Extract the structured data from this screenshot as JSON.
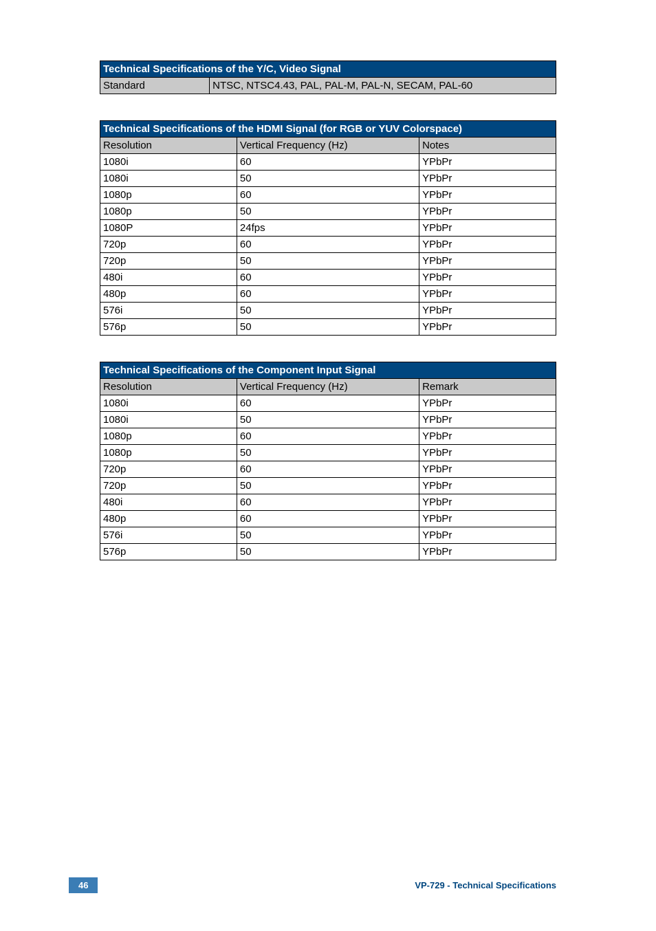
{
  "table1": {
    "title": "Technical Specifications of the Y/C, Video Signal",
    "title_bg": "#00467f",
    "title_color": "#ffffff",
    "header_bg": "#c9c9c9",
    "col_widths": [
      "24%",
      "76%"
    ],
    "rows": [
      [
        "Standard",
        "NTSC, NTSC4.43, PAL, PAL-M, PAL-N, SECAM, PAL-60"
      ]
    ]
  },
  "table2": {
    "title": "Technical Specifications of the HDMI Signal (for RGB or YUV Colorspace)",
    "title_bg": "#00467f",
    "title_color": "#ffffff",
    "header_bg": "#c9c9c9",
    "col_widths": [
      "30%",
      "40%",
      "30%"
    ],
    "headers": [
      "Resolution",
      "Vertical Frequency (Hz)",
      "Notes"
    ],
    "rows": [
      [
        "1080i",
        "60",
        "YPbPr"
      ],
      [
        "1080i",
        "50",
        "YPbPr"
      ],
      [
        "1080p",
        "60",
        "YPbPr"
      ],
      [
        "1080p",
        "50",
        "YPbPr"
      ],
      [
        "1080P",
        "24fps",
        "YPbPr"
      ],
      [
        "720p",
        "60",
        "YPbPr"
      ],
      [
        "720p",
        "50",
        "YPbPr"
      ],
      [
        "480i",
        "60",
        "YPbPr"
      ],
      [
        "480p",
        "60",
        "YPbPr"
      ],
      [
        "576i",
        "50",
        "YPbPr"
      ],
      [
        "576p",
        "50",
        "YPbPr"
      ]
    ]
  },
  "table3": {
    "title": "Technical Specifications of the Component Input Signal",
    "title_bg": "#00467f",
    "title_color": "#ffffff",
    "header_bg": "#c9c9c9",
    "col_widths": [
      "30%",
      "40%",
      "30%"
    ],
    "headers": [
      "Resolution",
      "Vertical Frequency (Hz)",
      "Remark"
    ],
    "rows": [
      [
        "1080i",
        "60",
        "YPbPr"
      ],
      [
        "1080i",
        "50",
        "YPbPr"
      ],
      [
        "1080p",
        "60",
        "YPbPr"
      ],
      [
        "1080p",
        "50",
        "YPbPr"
      ],
      [
        "720p",
        "60",
        "YPbPr"
      ],
      [
        "720p",
        "50",
        "YPbPr"
      ],
      [
        "480i",
        "60",
        "YPbPr"
      ],
      [
        "480p",
        "60",
        "YPbPr"
      ],
      [
        "576i",
        "50",
        "YPbPr"
      ],
      [
        "576p",
        "50",
        "YPbPr"
      ]
    ]
  },
  "footer": {
    "page_number": "46",
    "badge_bg": "#3b7db5",
    "badge_color": "#ffffff",
    "text": "VP-729 - Technical Specifications",
    "text_color": "#00467f"
  }
}
